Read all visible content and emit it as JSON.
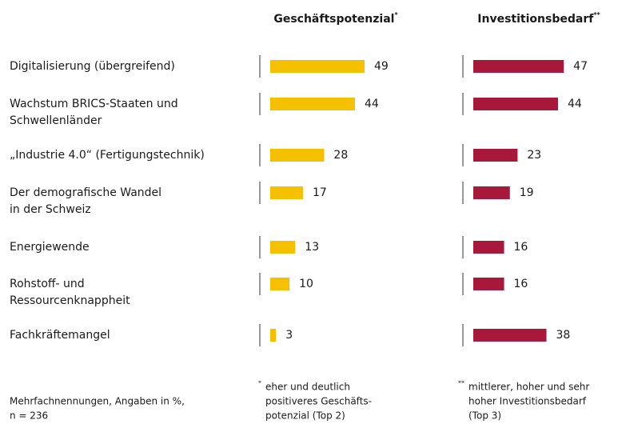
{
  "chart_data": {
    "type": "bar",
    "orientation": "horizontal",
    "categories": [
      [
        "Digitalisierung (übergreifend)"
      ],
      [
        "Wachstum BRICS-Staaten und",
        "Schwellenländer"
      ],
      [
        "„Industrie 4.0“ (Fertigungstechnik)"
      ],
      [
        "Der demografische Wandel",
        "in der Schweiz"
      ],
      [
        "Energiewende"
      ],
      [
        "Rohstoff- und",
        "Ressourcenknappheit"
      ],
      [
        "Fachkräftemangel"
      ]
    ],
    "series": [
      {
        "name": "Geschäftspotenzial",
        "marker": "*",
        "color": "#f5c000",
        "values": [
          49,
          44,
          28,
          17,
          13,
          10,
          3
        ],
        "footnote": [
          "eher und deutlich",
          "positiveres Geschäfts-",
          "potenzial (Top 2)"
        ]
      },
      {
        "name": "Investitionsbedarf",
        "marker": "**",
        "color": "#a8183a",
        "values": [
          47,
          44,
          23,
          19,
          16,
          16,
          38
        ],
        "footnote": [
          "mittlerer, hoher und sehr",
          "hoher Investitionsbedarf",
          "(Top 3)"
        ]
      }
    ],
    "note": [
      "Mehrfachnennungen, Angaben in %,",
      "n = 236"
    ]
  }
}
